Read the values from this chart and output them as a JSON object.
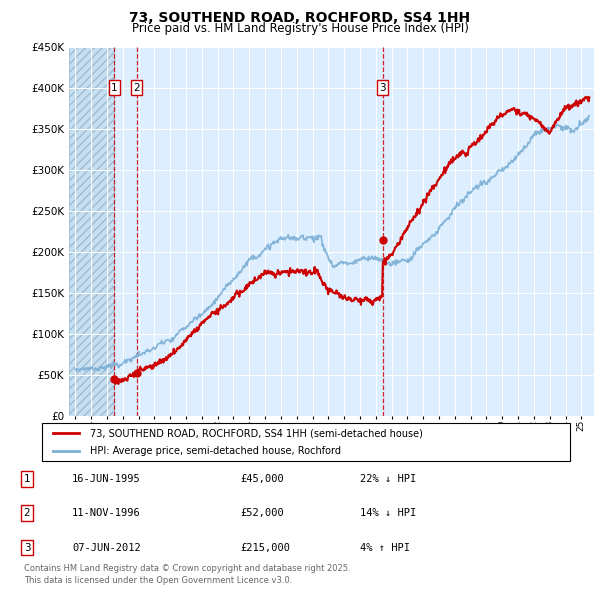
{
  "title": "73, SOUTHEND ROAD, ROCHFORD, SS4 1HH",
  "subtitle": "Price paid vs. HM Land Registry's House Price Index (HPI)",
  "sales": [
    {
      "date": 1995.46,
      "price": 45000,
      "label": "1"
    },
    {
      "date": 1996.87,
      "price": 52000,
      "label": "2"
    },
    {
      "date": 2012.44,
      "price": 215000,
      "label": "3"
    }
  ],
  "legend_entries": [
    "73, SOUTHEND ROAD, ROCHFORD, SS4 1HH (semi-detached house)",
    "HPI: Average price, semi-detached house, Rochford"
  ],
  "table_rows": [
    {
      "num": "1",
      "date": "16-JUN-1995",
      "price": "£45,000",
      "change": "22% ↓ HPI"
    },
    {
      "num": "2",
      "date": "11-NOV-1996",
      "price": "£52,000",
      "change": "14% ↓ HPI"
    },
    {
      "num": "3",
      "date": "07-JUN-2012",
      "price": "£215,000",
      "change": "4% ↑ HPI"
    }
  ],
  "footer": "Contains HM Land Registry data © Crown copyright and database right 2025.\nThis data is licensed under the Open Government Licence v3.0.",
  "hpi_color": "#7bafd4",
  "price_color": "#cc0000",
  "vline_color": "#cc0000",
  "background_chart": "#ddeeff",
  "ylim": [
    0,
    450000
  ],
  "xlim_start": 1992.6,
  "xlim_end": 2025.8
}
